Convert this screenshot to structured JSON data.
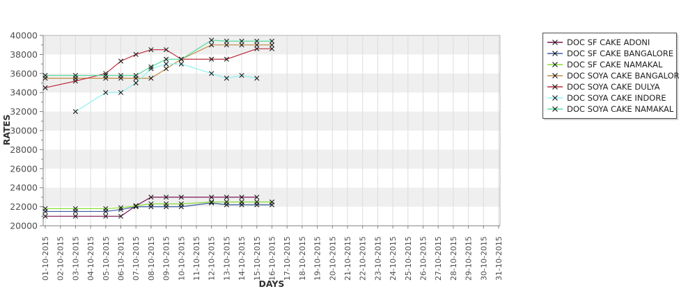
{
  "chart_data": {
    "type": "line",
    "title": "",
    "xlabel": "DAYS",
    "ylabel": "RATES",
    "ylim": [
      20000,
      40000
    ],
    "ytick_step": 2000,
    "ytick_minor_step": 1000,
    "grid": true,
    "legend_position": "right-outside",
    "categories": [
      "01-10-2015",
      "02-10-2015",
      "03-10-2015",
      "04-10-2015",
      "05-10-2015",
      "06-10-2015",
      "07-10-2015",
      "08-10-2015",
      "09-10-2015",
      "10-10-2015",
      "11-10-2015",
      "12-10-2015",
      "13-10-2015",
      "14-10-2015",
      "15-10-2015",
      "16-10-2015",
      "17-10-2015",
      "18-10-2015",
      "19-10-2015",
      "20-10-2015",
      "21-10-2015",
      "22-10-2015",
      "23-10-2015",
      "24-10-2015",
      "25-10-2015",
      "26-10-2015",
      "27-10-2015",
      "28-10-2015",
      "29-10-2015",
      "30-10-2015",
      "31-10-2015"
    ],
    "series": [
      {
        "name": "DOC SF CAKE ADONI",
        "color": "#7c1150",
        "marker": "x",
        "points": [
          [
            1,
            21000
          ],
          [
            3,
            21000
          ],
          [
            5,
            21000
          ],
          [
            6,
            21000
          ],
          [
            7,
            22100
          ],
          [
            8,
            23000
          ],
          [
            9,
            23000
          ],
          [
            10,
            23000
          ],
          [
            12,
            23000
          ],
          [
            13,
            23000
          ],
          [
            14,
            23000
          ],
          [
            15,
            23000
          ]
        ]
      },
      {
        "name": "DOC SF CAKE BANGALORE",
        "color": "#3a5a9e",
        "marker": "x",
        "points": [
          [
            1,
            21500
          ],
          [
            3,
            21500
          ],
          [
            5,
            21500
          ],
          [
            6,
            21700
          ],
          [
            7,
            22000
          ],
          [
            8,
            22000
          ],
          [
            9,
            22000
          ],
          [
            10,
            22000
          ],
          [
            12,
            22400
          ],
          [
            13,
            22200
          ],
          [
            14,
            22200
          ],
          [
            15,
            22200
          ],
          [
            16,
            22200
          ]
        ]
      },
      {
        "name": "DOC SF CAKE NAMAKAL",
        "color": "#86df33",
        "marker": "x",
        "points": [
          [
            1,
            21800
          ],
          [
            3,
            21800
          ],
          [
            5,
            21800
          ],
          [
            6,
            21900
          ],
          [
            7,
            22100
          ],
          [
            8,
            22300
          ],
          [
            9,
            22300
          ],
          [
            10,
            22300
          ],
          [
            12,
            22500
          ],
          [
            13,
            22500
          ],
          [
            14,
            22500
          ],
          [
            15,
            22500
          ],
          [
            16,
            22500
          ]
        ]
      },
      {
        "name": "DOC SOYA CAKE BANGALORE",
        "color": "#bf8b43",
        "marker": "x",
        "points": [
          [
            1,
            35500
          ],
          [
            3,
            35500
          ],
          [
            5,
            35500
          ],
          [
            6,
            35500
          ],
          [
            7,
            35500
          ],
          [
            8,
            35500
          ],
          [
            9,
            36500
          ],
          [
            10,
            37500
          ],
          [
            12,
            39000
          ],
          [
            13,
            39000
          ],
          [
            14,
            39000
          ],
          [
            15,
            39000
          ],
          [
            16,
            39000
          ]
        ]
      },
      {
        "name": "DOC SOYA CAKE DULYA",
        "color": "#bd2c3c",
        "marker": "x",
        "points": [
          [
            1,
            34500
          ],
          [
            3,
            35200
          ],
          [
            5,
            36000
          ],
          [
            6,
            37300
          ],
          [
            7,
            38000
          ],
          [
            8,
            38500
          ],
          [
            9,
            38500
          ],
          [
            10,
            37500
          ],
          [
            12,
            37500
          ],
          [
            13,
            37500
          ],
          [
            15,
            38600
          ],
          [
            16,
            38600
          ]
        ]
      },
      {
        "name": "DOC SOYA CAKE INDORE",
        "color": "#8df0f0",
        "marker": "x",
        "points": [
          [
            3,
            32000
          ],
          [
            5,
            34000
          ],
          [
            6,
            34000
          ],
          [
            7,
            35000
          ],
          [
            8,
            36500
          ],
          [
            9,
            37000
          ],
          [
            10,
            37000
          ],
          [
            12,
            36000
          ],
          [
            13,
            35500
          ],
          [
            14,
            35800
          ],
          [
            15,
            35500
          ]
        ]
      },
      {
        "name": "DOC SOYA CAKE NAMAKAL",
        "color": "#52dd9e",
        "marker": "x",
        "points": [
          [
            1,
            35800
          ],
          [
            3,
            35800
          ],
          [
            5,
            35800
          ],
          [
            6,
            35800
          ],
          [
            7,
            35800
          ],
          [
            8,
            36700
          ],
          [
            9,
            37500
          ],
          [
            10,
            37500
          ],
          [
            12,
            39500
          ],
          [
            13,
            39400
          ],
          [
            14,
            39400
          ],
          [
            15,
            39400
          ],
          [
            16,
            39400
          ]
        ]
      }
    ],
    "style": {
      "band_color": "#efefef",
      "gridline_color": "#dcdcdc",
      "plot_border_color": "#b4b4b4",
      "axis_color": "#7f7f7f",
      "tick_text_color": "#4d4d4d",
      "axis_title_color": "#303030",
      "marker_color": "#1a1a1a"
    }
  }
}
